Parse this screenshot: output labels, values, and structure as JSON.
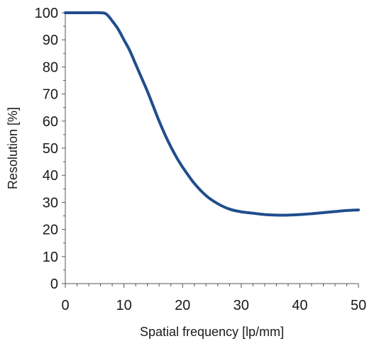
{
  "chart_data": {
    "type": "line",
    "title": "",
    "xlabel": "Spatial frequency [lp/mm]",
    "ylabel": "Resolution [%]",
    "xlim": [
      0,
      50
    ],
    "ylim": [
      0,
      100
    ],
    "x_ticks": [
      "0",
      "10",
      "20",
      "30",
      "40",
      "50"
    ],
    "y_ticks": [
      "0",
      "10",
      "20",
      "30",
      "40",
      "50",
      "60",
      "70",
      "80",
      "90",
      "100"
    ],
    "grid": false,
    "legend": "none",
    "series_color": "#1f4e8c",
    "axis_color": "#555555",
    "series": [
      {
        "x": [
          0,
          2,
          4,
          6,
          7,
          8,
          9,
          10,
          11,
          12,
          13,
          14,
          15,
          16,
          17,
          18,
          19,
          20,
          22,
          24,
          26,
          28,
          30,
          32,
          34,
          36,
          38,
          40,
          42,
          44,
          46,
          48,
          50
        ],
        "y": [
          100,
          100,
          100,
          100,
          99.5,
          97,
          94,
          90,
          86,
          81,
          76,
          71,
          65.5,
          60,
          55,
          50.5,
          46.5,
          43,
          37,
          32.5,
          29.5,
          27.5,
          26.5,
          26,
          25.5,
          25.3,
          25.3,
          25.5,
          25.8,
          26.2,
          26.6,
          27,
          27.2
        ]
      }
    ]
  }
}
